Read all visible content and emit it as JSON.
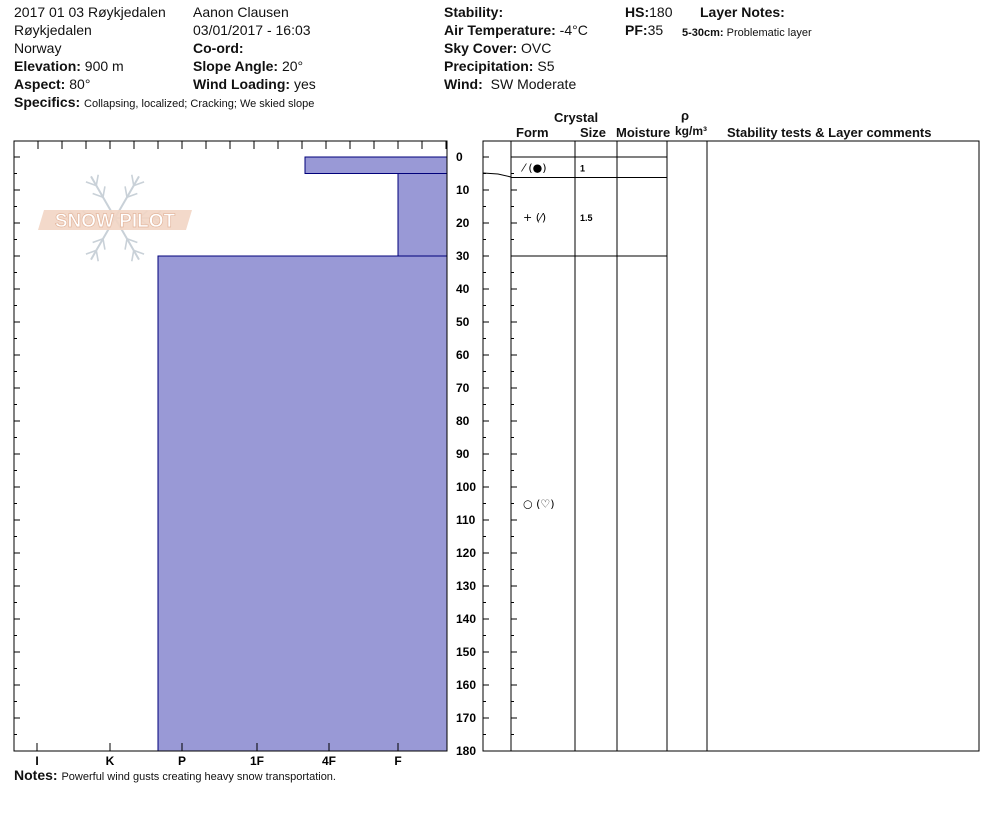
{
  "header": {
    "title": "2017 01 03 Røykjedalen",
    "location": "Røykjedalen",
    "country": "Norway",
    "elevation_label": "Elevation:",
    "elevation": "900 m",
    "aspect_label": "Aspect:",
    "aspect": "80°",
    "specifics_label": "Specifics:",
    "specifics": "Collapsing, localized;  Cracking;  We skied slope",
    "observer": "Aanon Clausen",
    "datetime": "03/01/2017 - 16:03",
    "coord_label": "Co-ord:",
    "slope_label": "Slope Angle:",
    "slope": "20°",
    "wind_loading_label": "Wind Loading:",
    "wind_loading": "yes",
    "stability_label": "Stability:",
    "air_temp_label": "Air Temperature:",
    "air_temp": "-4°C",
    "sky_label": "Sky Cover:",
    "sky": "OVC",
    "precip_label": "Precipitation:",
    "precip": "S5",
    "wind_label": "Wind:",
    "wind": "SW Moderate",
    "hs_label": "HS:",
    "hs": "180",
    "pf_label": "PF:",
    "pf": "35",
    "layer_notes_label": "Layer Notes:",
    "layer_note_range": "5-30cm:",
    "layer_note_text": "Problematic layer",
    "notes_label": "Notes:",
    "notes": "Powerful wind gusts creating heavy snow transportation."
  },
  "watermark": "SNOW PILOT",
  "table_headers": {
    "crystal": "Crystal",
    "form": "Form",
    "size": "Size",
    "moisture": "Moisture",
    "rho": "ρ",
    "density_unit": "kg/m³",
    "comments": "Stability tests & Layer comments"
  },
  "colors": {
    "hardness_fill": "#9999d6",
    "hardness_stroke": "#00007a"
  },
  "chart_data": {
    "type": "bar",
    "depth_range": [
      0,
      180
    ],
    "depth_ticks": [
      0,
      10,
      20,
      30,
      40,
      50,
      60,
      70,
      80,
      90,
      100,
      110,
      120,
      130,
      140,
      150,
      160,
      170,
      180
    ],
    "hardness_scale": [
      "I",
      "K",
      "P",
      "1F",
      "4F",
      "F"
    ],
    "layers": [
      {
        "top": 0,
        "bottom": 5,
        "hardness": "4F-",
        "form": "⁄ (●)",
        "size": "1"
      },
      {
        "top": 5,
        "bottom": 30,
        "hardness": "F",
        "form": "+ (⁄)",
        "size": "1.5"
      },
      {
        "top": 30,
        "bottom": 180,
        "hardness": "P-",
        "form": "○ (♡)",
        "size": ""
      }
    ]
  }
}
